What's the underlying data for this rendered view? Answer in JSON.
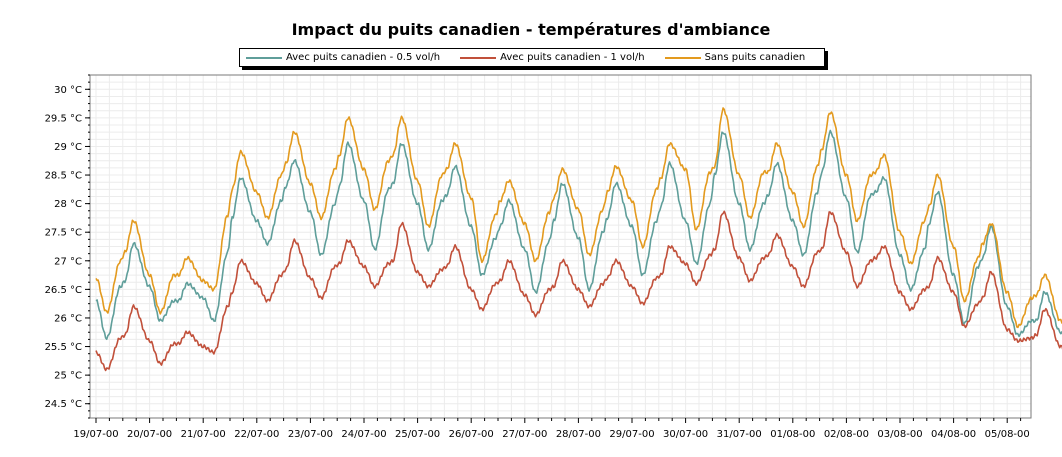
{
  "chart_data": {
    "type": "line",
    "title": "Impact du puits canadien - températures d'ambiance",
    "xlabel": "",
    "ylabel": "",
    "ylim": [
      24.25,
      30.25
    ],
    "y_ticks": [
      "30 °C",
      "29.5 °C",
      "29 °C",
      "28.5 °C",
      "28 °C",
      "27.5 °C",
      "27 °C",
      "26.5 °C",
      "26 °C",
      "25.5 °C",
      "25 °C",
      "24.5 °C"
    ],
    "y_tick_values": [
      30,
      29.5,
      29,
      28.5,
      28,
      27.5,
      27,
      26.5,
      26,
      25.5,
      25,
      24.5
    ],
    "x_ticks": [
      "19/07-00",
      "20/07-00",
      "21/07-00",
      "22/07-00",
      "23/07-00",
      "24/07-00",
      "25/07-00",
      "26/07-00",
      "27/07-00",
      "28/07-00",
      "29/07-00",
      "30/07-00",
      "31/07-00",
      "01/08-00",
      "02/08-00",
      "03/08-00",
      "04/08-00",
      "05/08-00"
    ],
    "x_range_days": [
      0,
      17.6
    ],
    "grid": true,
    "legend_position": "top-center",
    "series": [
      {
        "name": "Avec puits canadien - 0.5 vol/h",
        "color": "#5f9e9a",
        "daily_values": [
          [
            26.3,
            25.65,
            26.55,
            26.65,
            27.3
          ],
          [
            26.55,
            25.95,
            26.3,
            26.3,
            26.6
          ],
          [
            26.35,
            25.95,
            27.15,
            27.75,
            28.45
          ],
          [
            27.7,
            27.3,
            28.05,
            28.3,
            28.75
          ],
          [
            27.85,
            27.1,
            28.0,
            28.3,
            29.05
          ],
          [
            28.05,
            27.2,
            28.25,
            28.35,
            29.05
          ],
          [
            28.0,
            27.2,
            28.05,
            28.15,
            28.65
          ],
          [
            27.6,
            26.75,
            27.4,
            27.6,
            28.05
          ],
          [
            27.2,
            26.45,
            27.35,
            27.7,
            28.35
          ],
          [
            27.4,
            26.5,
            27.5,
            27.75,
            28.35
          ],
          [
            27.6,
            26.75,
            27.7,
            27.95,
            28.7
          ],
          [
            27.7,
            26.95,
            28.0,
            28.5,
            29.25
          ],
          [
            28.0,
            27.2,
            28.0,
            28.15,
            28.7
          ],
          [
            27.7,
            27.1,
            28.2,
            28.55,
            29.25
          ],
          [
            28.1,
            27.15,
            28.15,
            28.2,
            28.45
          ],
          [
            27.1,
            26.5,
            27.2,
            27.65,
            28.2
          ],
          [
            26.75,
            25.9,
            26.9,
            27.05,
            27.6
          ],
          [
            26.2,
            25.7,
            25.95,
            25.95,
            26.45
          ],
          [
            25.75,
            25.2,
            25.35
          ]
        ]
      },
      {
        "name": "Avec puits canadien - 1 vol/h",
        "color": "#c1503a",
        "daily_values": [
          [
            25.4,
            25.1,
            25.65,
            25.7,
            26.2
          ],
          [
            25.6,
            25.2,
            25.55,
            25.55,
            25.75
          ],
          [
            25.5,
            25.4,
            26.2,
            26.45,
            27.0
          ],
          [
            26.6,
            26.3,
            26.75,
            26.85,
            27.35
          ],
          [
            26.7,
            26.35,
            26.9,
            26.95,
            27.35
          ],
          [
            26.9,
            26.55,
            26.95,
            27.0,
            27.65
          ],
          [
            26.8,
            26.55,
            26.85,
            26.9,
            27.25
          ],
          [
            26.5,
            26.15,
            26.6,
            26.65,
            27.0
          ],
          [
            26.4,
            26.05,
            26.5,
            26.55,
            27.0
          ],
          [
            26.5,
            26.2,
            26.6,
            26.7,
            27.0
          ],
          [
            26.55,
            26.25,
            26.7,
            26.75,
            27.25
          ],
          [
            26.95,
            26.6,
            27.1,
            27.2,
            27.85
          ],
          [
            27.05,
            26.65,
            27.05,
            27.1,
            27.45
          ],
          [
            26.9,
            26.55,
            27.15,
            27.2,
            27.85
          ],
          [
            27.15,
            26.55,
            27.0,
            27.05,
            27.25
          ],
          [
            26.45,
            26.15,
            26.5,
            26.55,
            27.05
          ],
          [
            26.45,
            25.85,
            26.25,
            26.35,
            26.8
          ],
          [
            25.8,
            25.6,
            25.65,
            25.7,
            26.15
          ],
          [
            25.5,
            25.15,
            25.3
          ]
        ]
      },
      {
        "name": "Sans puits canadien",
        "color": "#e39a1e",
        "daily_values": [
          [
            26.7,
            26.1,
            27.0,
            27.15,
            27.7
          ],
          [
            26.75,
            26.1,
            26.75,
            26.75,
            27.05
          ],
          [
            26.65,
            26.5,
            27.8,
            28.25,
            28.9
          ],
          [
            28.2,
            27.75,
            28.5,
            28.7,
            29.25
          ],
          [
            28.35,
            27.75,
            28.6,
            28.85,
            29.5
          ],
          [
            28.6,
            27.9,
            28.75,
            28.85,
            29.5
          ],
          [
            28.4,
            27.6,
            28.5,
            28.6,
            29.05
          ],
          [
            28.1,
            27.0,
            27.8,
            28.05,
            28.4
          ],
          [
            27.65,
            27.0,
            27.85,
            28.1,
            28.6
          ],
          [
            27.9,
            27.1,
            27.9,
            28.2,
            28.65
          ],
          [
            28.05,
            27.25,
            28.25,
            28.45,
            29.05
          ],
          [
            28.6,
            27.55,
            28.55,
            28.65,
            29.65
          ],
          [
            28.5,
            27.75,
            28.55,
            28.55,
            29.05
          ],
          [
            28.2,
            27.6,
            28.65,
            28.95,
            29.6
          ],
          [
            28.5,
            27.7,
            28.5,
            28.55,
            28.85
          ],
          [
            27.5,
            26.95,
            27.7,
            27.95,
            28.5
          ],
          [
            27.25,
            26.3,
            27.05,
            27.3,
            27.65
          ],
          [
            26.45,
            25.85,
            26.35,
            26.4,
            26.75
          ],
          [
            25.95,
            25.5,
            25.75
          ]
        ]
      }
    ]
  }
}
